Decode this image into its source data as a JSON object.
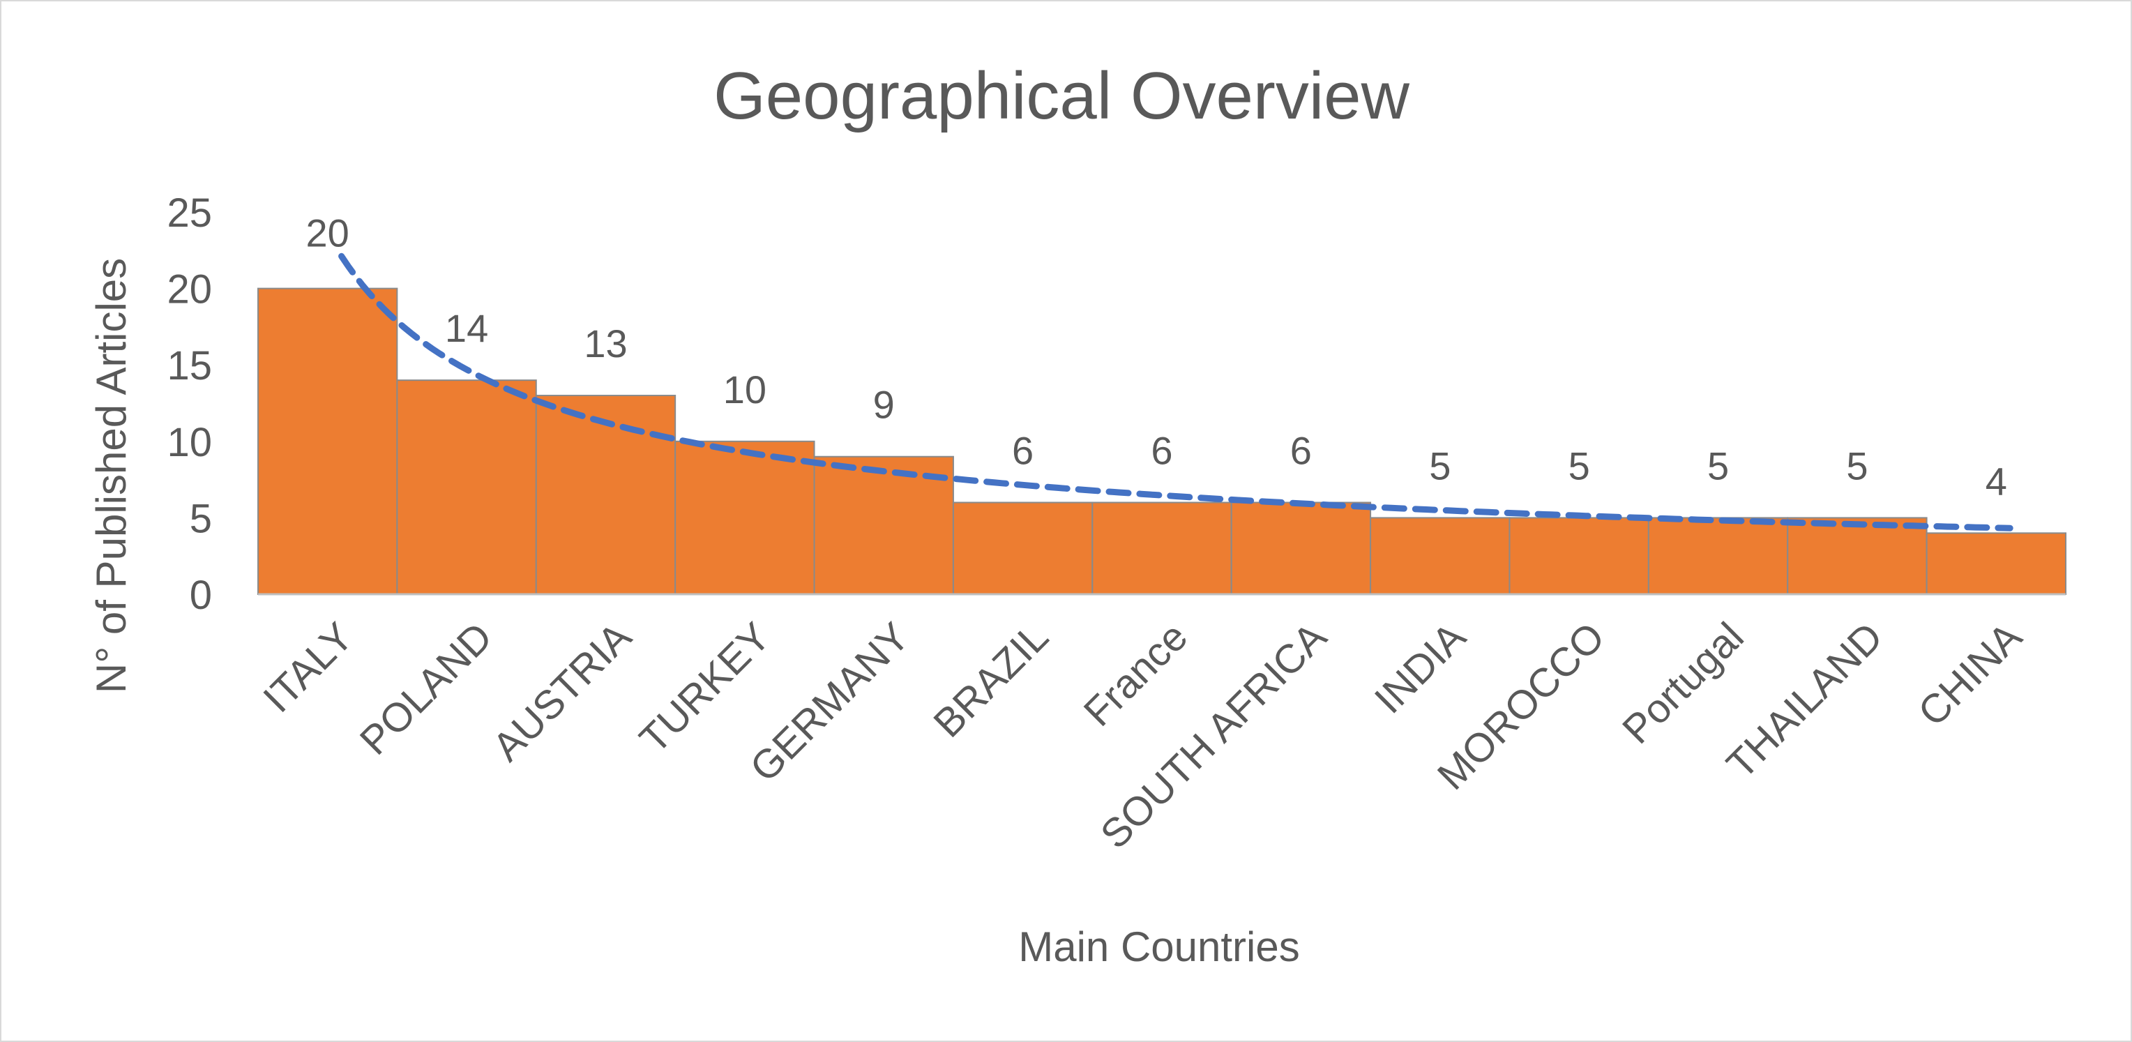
{
  "chart_data": {
    "type": "bar",
    "title": "Geographical Overview",
    "xlabel": "Main Countries",
    "ylabel": "N° of Published Articles",
    "categories": [
      "ITALY",
      "POLAND",
      "AUSTRIA",
      "TURKEY",
      "GERMANY",
      "BRAZIL",
      "France",
      "SOUTH AFRICA",
      "INDIA",
      "MOROCCO",
      "Portugal",
      "THAILAND",
      "CHINA"
    ],
    "values": [
      20,
      14,
      13,
      10,
      9,
      6,
      6,
      6,
      5,
      5,
      5,
      5,
      4
    ],
    "ylim": [
      0,
      25
    ],
    "yticks": [
      0,
      5,
      10,
      15,
      20,
      25
    ],
    "data_labels": true,
    "grid": false,
    "legend": "none",
    "trendline": {
      "style": "dashed",
      "kind": "power"
    },
    "colors": {
      "bar": "#ED7D31",
      "trendline": "#4472C4",
      "text": "#595959",
      "axis": "#bfbfbf"
    }
  }
}
